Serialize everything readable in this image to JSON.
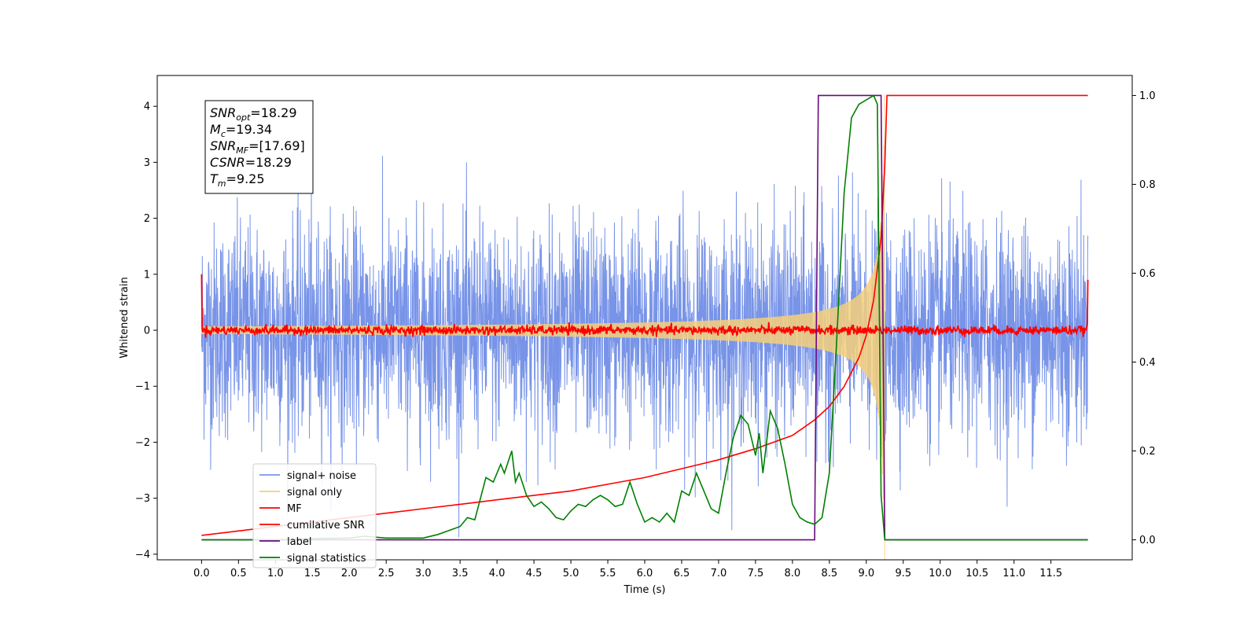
{
  "chart_data": {
    "type": "line",
    "xlabel": "Time (s)",
    "ylabel": "Whitened strain",
    "xlim": [
      -0.6,
      12.6
    ],
    "ylim": [
      -4.1,
      4.55
    ],
    "ylim_right": [
      -0.045,
      1.045
    ],
    "x_ticks": [
      0.0,
      0.5,
      1.0,
      1.5,
      2.0,
      2.5,
      3.0,
      3.5,
      4.0,
      4.5,
      5.0,
      5.5,
      6.0,
      6.5,
      7.0,
      7.5,
      8.0,
      8.5,
      9.0,
      9.5,
      10.0,
      10.5,
      11.0,
      11.5
    ],
    "x_tick_labels": [
      "0.0",
      "0.5",
      "1.0",
      "1.5",
      "2.0",
      "2.5",
      "3.0",
      "3.5",
      "4.0",
      "4.5",
      "5.0",
      "5.5",
      "6.0",
      "6.5",
      "7.0",
      "7.5",
      "8.0",
      "8.5",
      "9.0",
      "9.5",
      "10.0",
      "10.5",
      "11.0",
      "11.5"
    ],
    "y_ticks": [
      -4,
      -3,
      -2,
      -1,
      0,
      1,
      2,
      3,
      4
    ],
    "y_tick_labels": [
      "−4",
      "−3",
      "−2",
      "−1",
      "0",
      "1",
      "2",
      "3",
      "4"
    ],
    "y2_ticks": [
      0.0,
      0.2,
      0.4,
      0.6,
      0.8,
      1.0
    ],
    "y2_tick_labels": [
      "0.0",
      "0.2",
      "0.4",
      "0.6",
      "0.8",
      "1.0"
    ],
    "legend": {
      "placement": "lower-left",
      "entries": [
        {
          "label": "signal+ noise",
          "color": "#7894e8"
        },
        {
          "label": "signal only",
          "color": "#f5cf7a"
        },
        {
          "label": "MF",
          "color": "#ff0000"
        },
        {
          "label": "cumilative SNR",
          "color": "#ff0000"
        },
        {
          "label": "label",
          "color": "#6a0a7e"
        },
        {
          "label": "signal statistics",
          "color": "#008000"
        }
      ]
    },
    "info_box": {
      "lines": [
        {
          "main": "SNR",
          "sub": "opt",
          "rest": "=18.29"
        },
        {
          "main": "M",
          "sub": "c",
          "rest": "=19.34"
        },
        {
          "main": "SNR",
          "sub": "MF",
          "rest": "=[17.69]"
        },
        {
          "main": "CSNR",
          "sub": "",
          "rest": "=18.29"
        },
        {
          "main": "T",
          "sub": "m",
          "rest": "=9.25"
        }
      ]
    },
    "series": [
      {
        "name": "signal+ noise",
        "axis": "left",
        "color": "#7894e8",
        "t_start": 0.0,
        "t_end": 12.0,
        "typical_range": [
          -2.0,
          2.0
        ],
        "extremes": [
          -3.7,
          4.15
        ]
      },
      {
        "name": "signal only",
        "axis": "left",
        "color": "#f5cf7a",
        "t_start": 0.0,
        "t_end": 9.25,
        "merger_amplitude": 2.6
      },
      {
        "name": "MF",
        "axis": "left",
        "color": "#ff0000",
        "t_start": 0.0,
        "t_end": 12.0,
        "edge_values": [
          1.0,
          0.9
        ],
        "noise_amplitude": 0.08
      },
      {
        "name": "cumilative SNR",
        "axis": "right",
        "color": "#ff0000",
        "x": [
          0.0,
          0.5,
          1.0,
          1.5,
          2.0,
          2.5,
          3.0,
          3.5,
          4.0,
          4.5,
          5.0,
          5.5,
          6.0,
          6.5,
          7.0,
          7.5,
          8.0,
          8.3,
          8.5,
          8.7,
          8.9,
          9.0,
          9.1,
          9.2,
          9.25,
          9.28,
          12.0
        ],
        "y": [
          0.01,
          0.02,
          0.03,
          0.04,
          0.05,
          0.06,
          0.07,
          0.08,
          0.09,
          0.1,
          0.11,
          0.125,
          0.14,
          0.16,
          0.18,
          0.205,
          0.235,
          0.27,
          0.3,
          0.345,
          0.41,
          0.46,
          0.54,
          0.68,
          0.84,
          1.0,
          1.0
        ]
      },
      {
        "name": "label",
        "axis": "right",
        "color": "#6a0a7e",
        "x": [
          0.0,
          8.3,
          8.35,
          9.2,
          9.25,
          12.0
        ],
        "y": [
          0.0,
          0.0,
          1.0,
          1.0,
          0.0,
          0.0
        ]
      },
      {
        "name": "signal statistics",
        "axis": "right",
        "color": "#008000",
        "x": [
          0.0,
          0.5,
          1.0,
          1.5,
          2.0,
          2.2,
          2.5,
          3.0,
          3.2,
          3.5,
          3.6,
          3.7,
          3.85,
          3.95,
          4.05,
          4.1,
          4.2,
          4.25,
          4.3,
          4.4,
          4.5,
          4.6,
          4.7,
          4.8,
          4.9,
          5.0,
          5.1,
          5.2,
          5.3,
          5.4,
          5.5,
          5.6,
          5.7,
          5.8,
          5.9,
          6.0,
          6.1,
          6.2,
          6.3,
          6.4,
          6.5,
          6.6,
          6.7,
          6.8,
          6.9,
          7.0,
          7.1,
          7.2,
          7.3,
          7.4,
          7.5,
          7.55,
          7.6,
          7.7,
          7.8,
          7.9,
          8.0,
          8.1,
          8.2,
          8.3,
          8.4,
          8.5,
          8.6,
          8.7,
          8.8,
          8.9,
          9.0,
          9.1,
          9.15,
          9.2,
          9.25,
          9.3,
          12.0
        ],
        "y": [
          0.0,
          0.0,
          0.0,
          0.003,
          0.004,
          0.008,
          0.004,
          0.004,
          0.012,
          0.03,
          0.05,
          0.045,
          0.14,
          0.13,
          0.17,
          0.15,
          0.2,
          0.13,
          0.15,
          0.1,
          0.075,
          0.085,
          0.07,
          0.05,
          0.045,
          0.065,
          0.08,
          0.075,
          0.09,
          0.1,
          0.09,
          0.075,
          0.08,
          0.13,
          0.08,
          0.04,
          0.05,
          0.04,
          0.06,
          0.04,
          0.11,
          0.1,
          0.15,
          0.11,
          0.07,
          0.06,
          0.15,
          0.23,
          0.28,
          0.26,
          0.19,
          0.24,
          0.15,
          0.29,
          0.25,
          0.17,
          0.08,
          0.05,
          0.04,
          0.035,
          0.05,
          0.15,
          0.45,
          0.78,
          0.95,
          0.98,
          0.99,
          1.0,
          0.98,
          0.1,
          0.0,
          0.0,
          0.0
        ]
      }
    ]
  }
}
